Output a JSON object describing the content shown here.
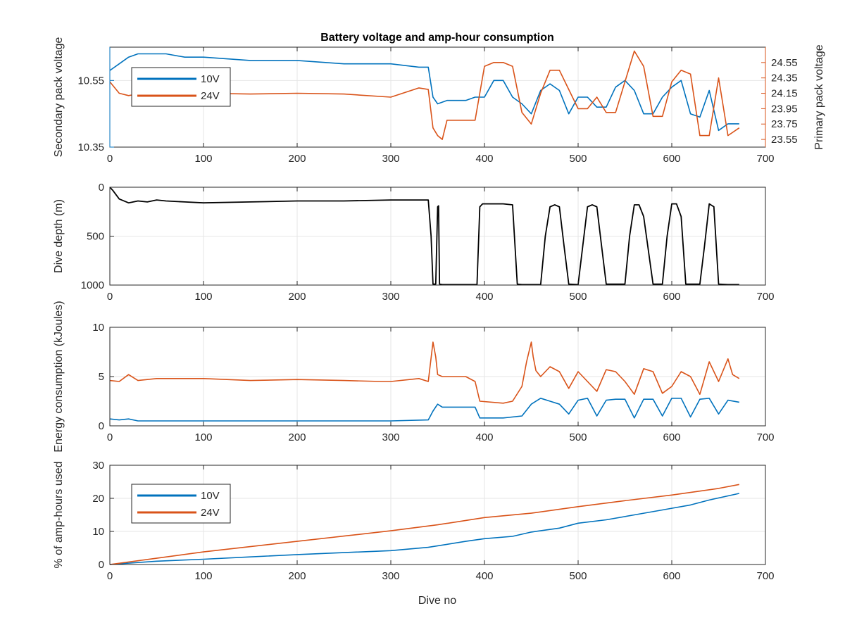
{
  "figure": {
    "title": "Battery voltage and amp-hour consumption",
    "xlabel": "Dive no"
  },
  "colors": {
    "blue": "#0072BD",
    "orange": "#D95319",
    "black": "#000000"
  },
  "chart_data": [
    {
      "type": "line",
      "title": "Battery voltage and amp-hour consumption",
      "xlabel": "",
      "ylabel": "Secondary pack voltage",
      "ylabel_right": "Primary pack voltage",
      "xlim": [
        0,
        700
      ],
      "ylim": [
        10.35,
        10.65
      ],
      "ylim_right": [
        23.45,
        24.75
      ],
      "xticks": [
        0,
        100,
        200,
        300,
        400,
        500,
        600,
        700
      ],
      "yticks": [
        10.35,
        10.55
      ],
      "yticks_right": [
        23.55,
        23.75,
        23.95,
        24.15,
        24.35,
        24.55
      ],
      "grid": true,
      "legend": "top-left",
      "series": [
        {
          "name": "10V",
          "axis": "left",
          "color": "#0072BD",
          "x": [
            0,
            10,
            20,
            30,
            40,
            60,
            80,
            100,
            150,
            200,
            250,
            300,
            330,
            340,
            345,
            350,
            360,
            380,
            390,
            400,
            410,
            420,
            430,
            440,
            450,
            460,
            470,
            480,
            490,
            500,
            510,
            520,
            530,
            540,
            550,
            560,
            570,
            580,
            590,
            600,
            610,
            620,
            630,
            640,
            650,
            660,
            672
          ],
          "y": [
            10.58,
            10.6,
            10.62,
            10.63,
            10.63,
            10.63,
            10.62,
            10.62,
            10.61,
            10.61,
            10.6,
            10.6,
            10.59,
            10.59,
            10.5,
            10.48,
            10.49,
            10.49,
            10.5,
            10.5,
            10.55,
            10.55,
            10.5,
            10.48,
            10.45,
            10.52,
            10.54,
            10.52,
            10.45,
            10.5,
            10.5,
            10.47,
            10.47,
            10.53,
            10.55,
            10.52,
            10.45,
            10.45,
            10.5,
            10.53,
            10.55,
            10.45,
            10.44,
            10.52,
            10.4,
            10.42,
            10.42
          ]
        },
        {
          "name": "24V",
          "axis": "right",
          "color": "#D95319",
          "x": [
            0,
            10,
            20,
            30,
            50,
            100,
            150,
            200,
            250,
            300,
            330,
            340,
            345,
            350,
            355,
            360,
            380,
            390,
            400,
            410,
            420,
            430,
            440,
            450,
            460,
            470,
            480,
            490,
            500,
            510,
            520,
            530,
            540,
            550,
            560,
            570,
            580,
            590,
            600,
            610,
            620,
            630,
            640,
            650,
            660,
            672
          ],
          "y": [
            24.3,
            24.15,
            24.12,
            24.14,
            24.15,
            24.15,
            24.14,
            24.15,
            24.14,
            24.1,
            24.22,
            24.2,
            23.7,
            23.6,
            23.55,
            23.8,
            23.8,
            23.8,
            24.5,
            24.55,
            24.55,
            24.5,
            23.9,
            23.75,
            24.15,
            24.45,
            24.45,
            24.2,
            23.95,
            23.95,
            24.1,
            23.9,
            23.9,
            24.3,
            24.7,
            24.5,
            23.85,
            23.85,
            24.3,
            24.45,
            24.4,
            23.6,
            23.6,
            24.35,
            23.6,
            23.7
          ]
        }
      ]
    },
    {
      "type": "line",
      "xlabel": "",
      "ylabel": "Dive depth (m)",
      "xlim": [
        0,
        700
      ],
      "ylim": [
        0,
        1000
      ],
      "y_reversed": true,
      "xticks": [
        0,
        100,
        200,
        300,
        400,
        500,
        600,
        700
      ],
      "yticks": [
        0,
        500,
        1000
      ],
      "grid": true,
      "series": [
        {
          "color": "#000000",
          "x": [
            0,
            3,
            10,
            20,
            30,
            40,
            50,
            60,
            80,
            100,
            150,
            200,
            250,
            300,
            340,
            343,
            345,
            348,
            350,
            351,
            352,
            355,
            392,
            395,
            398,
            420,
            430,
            435,
            440,
            460,
            465,
            470,
            475,
            480,
            485,
            490,
            500,
            505,
            510,
            515,
            520,
            525,
            530,
            550,
            555,
            560,
            565,
            570,
            580,
            590,
            595,
            600,
            605,
            610,
            615,
            620,
            630,
            635,
            640,
            645,
            650,
            660,
            672
          ],
          "y": [
            0,
            30,
            120,
            160,
            140,
            150,
            130,
            140,
            150,
            160,
            150,
            140,
            140,
            130,
            130,
            500,
            990,
            990,
            200,
            190,
            990,
            995,
            995,
            200,
            170,
            170,
            180,
            990,
            995,
            995,
            500,
            200,
            180,
            200,
            600,
            990,
            995,
            600,
            200,
            180,
            200,
            600,
            990,
            990,
            500,
            180,
            180,
            300,
            990,
            990,
            500,
            170,
            170,
            300,
            990,
            990,
            990,
            600,
            170,
            200,
            990,
            995,
            995
          ]
        }
      ]
    },
    {
      "type": "line",
      "xlabel": "",
      "ylabel": "Energy consumption (kJoules)",
      "xlim": [
        0,
        700
      ],
      "ylim": [
        0,
        10
      ],
      "xticks": [
        0,
        100,
        200,
        300,
        400,
        500,
        600,
        700
      ],
      "yticks": [
        0,
        5,
        10
      ],
      "grid": true,
      "series": [
        {
          "color": "#D95319",
          "x": [
            0,
            10,
            20,
            30,
            50,
            100,
            150,
            200,
            250,
            290,
            300,
            330,
            340,
            345,
            348,
            350,
            355,
            380,
            390,
            395,
            420,
            430,
            440,
            445,
            450,
            452,
            455,
            460,
            470,
            480,
            490,
            500,
            510,
            520,
            530,
            540,
            550,
            560,
            570,
            580,
            590,
            600,
            610,
            620,
            630,
            640,
            650,
            660,
            665,
            672
          ],
          "y": [
            4.6,
            4.5,
            5.2,
            4.6,
            4.8,
            4.8,
            4.6,
            4.7,
            4.6,
            4.5,
            4.5,
            4.8,
            4.5,
            8.5,
            7,
            5.2,
            5,
            5,
            4.5,
            2.5,
            2.3,
            2.5,
            4,
            6.5,
            8.5,
            7,
            5.6,
            5,
            6,
            5.5,
            3.8,
            5.5,
            4.5,
            3.5,
            5.7,
            5.5,
            4.5,
            3.2,
            5.8,
            5.5,
            3.3,
            4,
            5.5,
            5,
            3.2,
            6.5,
            4.5,
            6.8,
            5.2,
            4.8
          ]
        },
        {
          "color": "#0072BD",
          "x": [
            0,
            10,
            20,
            30,
            100,
            200,
            300,
            340,
            345,
            350,
            355,
            390,
            395,
            420,
            440,
            450,
            460,
            470,
            480,
            490,
            500,
            510,
            520,
            530,
            540,
            550,
            560,
            570,
            580,
            590,
            600,
            610,
            620,
            630,
            640,
            650,
            660,
            672
          ],
          "y": [
            0.7,
            0.6,
            0.7,
            0.5,
            0.5,
            0.5,
            0.5,
            0.6,
            1.5,
            2.2,
            1.9,
            1.9,
            0.8,
            0.8,
            1,
            2.2,
            2.8,
            2.5,
            2.2,
            1.2,
            2.6,
            2.8,
            1,
            2.6,
            2.7,
            2.7,
            0.8,
            2.7,
            2.7,
            1,
            2.8,
            2.8,
            0.9,
            2.7,
            2.8,
            1.2,
            2.6,
            2.4
          ]
        }
      ]
    },
    {
      "type": "line",
      "xlabel": "Dive no",
      "ylabel": "% of amp-hours used",
      "xlim": [
        0,
        700
      ],
      "ylim": [
        0,
        30
      ],
      "xticks": [
        0,
        100,
        200,
        300,
        400,
        500,
        600,
        700
      ],
      "yticks": [
        0,
        10,
        20,
        30
      ],
      "grid": true,
      "legend": "top-left",
      "series": [
        {
          "name": "10V",
          "color": "#0072BD",
          "x": [
            0,
            50,
            100,
            150,
            200,
            250,
            300,
            340,
            380,
            400,
            430,
            450,
            480,
            500,
            530,
            560,
            590,
            600,
            620,
            640,
            672
          ],
          "y": [
            0,
            1,
            1.6,
            2.3,
            3,
            3.6,
            4.2,
            5.2,
            7,
            7.8,
            8.5,
            9.8,
            11,
            12.5,
            13.5,
            15,
            16.5,
            17,
            18,
            19.5,
            21.5
          ]
        },
        {
          "name": "24V",
          "color": "#D95319",
          "x": [
            0,
            50,
            100,
            150,
            200,
            250,
            300,
            350,
            400,
            450,
            500,
            550,
            600,
            650,
            672
          ],
          "y": [
            0,
            1.9,
            3.8,
            5.4,
            7,
            8.6,
            10.2,
            12,
            14.2,
            15.5,
            17.5,
            19.3,
            21,
            23,
            24.2
          ]
        }
      ]
    }
  ]
}
